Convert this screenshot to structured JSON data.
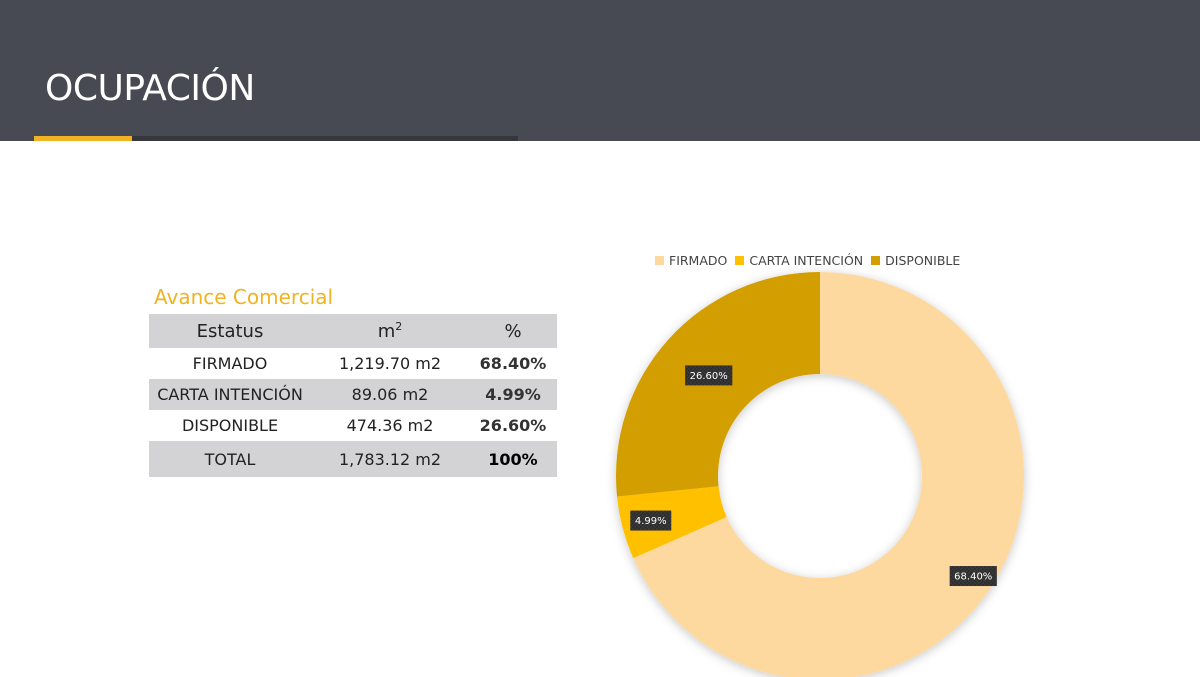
{
  "header": {
    "title": "OCUPACIÓN"
  },
  "theme": {
    "accent": "#f0b323",
    "header_bg": "#474a52"
  },
  "table": {
    "title": "Avance Comercial",
    "columns": [
      "Estatus",
      "m",
      "%"
    ],
    "rows": [
      [
        "FIRMADO",
        "1,219.70 m2",
        "68.40%"
      ],
      [
        "CARTA INTENCIÓN",
        "89.06 m2",
        "4.99%"
      ],
      [
        "DISPONIBLE",
        "474.36 m2",
        "26.60%"
      ],
      [
        "TOTAL",
        "1,783.12 m2",
        "100%"
      ]
    ]
  },
  "chart_data": {
    "type": "pie",
    "donut": true,
    "categories": [
      "FIRMADO",
      "CARTA INTENCIÓN",
      "DISPONIBLE"
    ],
    "values": [
      68.4,
      4.99,
      26.6
    ],
    "data_labels": [
      "68.40%",
      "4.99%",
      "26.60%"
    ],
    "colors": [
      "#fdd9a0",
      "#ffc000",
      "#d29e00"
    ],
    "legend": "top"
  }
}
